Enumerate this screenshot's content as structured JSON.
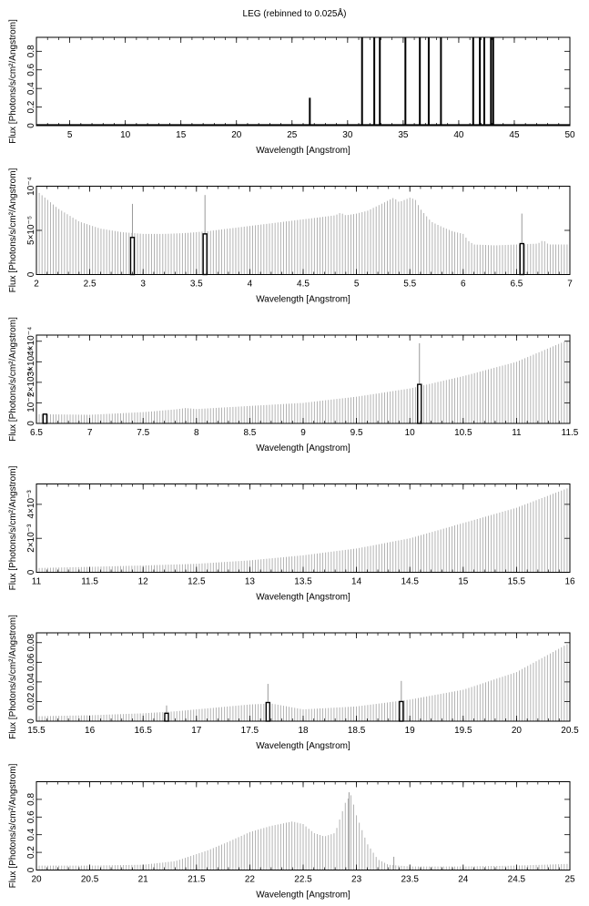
{
  "title": "LEG (rebinned to 0.025Å)",
  "chart_data": [
    {
      "type": "bar",
      "xlabel": "Wavelength [Angstrom]",
      "ylabel": "Flux [Photons/s/cm²/Angstrom]",
      "xlim": [
        2,
        50
      ],
      "ylim": [
        0,
        0.95
      ],
      "xticks": [
        "5",
        "10",
        "15",
        "20",
        "25",
        "30",
        "35",
        "40",
        "45",
        "50"
      ],
      "yticks": [
        "0",
        "0.2",
        "0.4",
        "0.6",
        "0.8"
      ],
      "series": [
        {
          "style": "baseline",
          "x": [
            2,
            50
          ],
          "values": [
            0.008,
            0.008
          ]
        },
        {
          "style": "spike",
          "x": [
            26.6,
            31.3,
            32.4,
            32.9,
            35.2,
            36.5,
            37.3,
            38.4,
            41.3,
            41.9,
            42.3,
            42.9,
            43.1
          ],
          "values": [
            0.3,
            0.95,
            0.95,
            0.95,
            0.95,
            0.95,
            0.95,
            0.95,
            0.95,
            0.95,
            0.95,
            0.95,
            0.95
          ]
        }
      ]
    },
    {
      "type": "bar",
      "xlabel": "Wavelength [Angstrom]",
      "ylabel": "Flux [Photons/s/cm²/Angstrom]",
      "xlim": [
        2,
        7
      ],
      "ylim": [
        0,
        0.0001
      ],
      "xticks": [
        "2",
        "2.5",
        "3",
        "3.5",
        "4",
        "4.5",
        "5",
        "5.5",
        "6",
        "6.5",
        "7"
      ],
      "yticks": [
        "0",
        "5×10⁻⁵",
        "10⁻⁴"
      ],
      "yticks_values": [
        0,
        5e-05,
        0.0001
      ],
      "series": [
        {
          "style": "envelope",
          "x": [
            2.0,
            2.1,
            2.2,
            2.4,
            2.6,
            2.8,
            3.0,
            3.2,
            3.4,
            3.6,
            3.8,
            4.0,
            4.2,
            4.4,
            4.6,
            4.8,
            4.85,
            4.9,
            5.0,
            5.1,
            5.2,
            5.3,
            5.35,
            5.4,
            5.5,
            5.55,
            5.6,
            5.7,
            5.8,
            5.9,
            6.0,
            6.05,
            6.1,
            6.3,
            6.5,
            6.7,
            6.75,
            6.8,
            7.0
          ],
          "values": [
            9.5e-05,
            8.5e-05,
            7.5e-05,
            6e-05,
            5.2e-05,
            4.8e-05,
            4.6e-05,
            4.6e-05,
            4.7e-05,
            4.9e-05,
            5.2e-05,
            5.5e-05,
            5.8e-05,
            6.1e-05,
            6.4e-05,
            6.7e-05,
            7e-05,
            6.7e-05,
            6.9e-05,
            7.2e-05,
            7.8e-05,
            8.4e-05,
            8.7e-05,
            8.2e-05,
            8.7e-05,
            8.5e-05,
            7.4e-05,
            6e-05,
            5.4e-05,
            4.9e-05,
            4.6e-05,
            3.8e-05,
            3.4e-05,
            3.3e-05,
            3.4e-05,
            3.5e-05,
            3.9e-05,
            3.4e-05,
            3.4e-05
          ]
        },
        {
          "style": "spike",
          "x": [
            2.9,
            3.58,
            6.55
          ],
          "values": [
            8e-05,
            9e-05,
            6.9e-05
          ]
        },
        {
          "style": "box",
          "x": [
            2.9,
            3.58,
            6.55
          ],
          "values": [
            4.2e-05,
            4.6e-05,
            3.5e-05
          ]
        }
      ]
    },
    {
      "type": "bar",
      "xlabel": "Wavelength [Angstrom]",
      "ylabel": "Flux [Photons/s/cm²/Angstrom]",
      "xlim": [
        6.5,
        11.5
      ],
      "ylim": [
        0,
        0.00043
      ],
      "xticks": [
        "6.5",
        "7",
        "7.5",
        "8",
        "8.5",
        "9",
        "9.5",
        "10",
        "10.5",
        "11",
        "11.5"
      ],
      "yticks": [
        "0",
        "10⁻⁴",
        "2×10⁻⁴",
        "3×10⁻⁴",
        "4×10⁻⁴"
      ],
      "yticks_values": [
        0,
        0.0001,
        0.0002,
        0.0003,
        0.0004
      ],
      "series": [
        {
          "style": "envelope",
          "x": [
            6.5,
            7.0,
            7.5,
            7.8,
            7.9,
            8.0,
            8.5,
            9.0,
            9.5,
            10.0,
            10.5,
            11.0,
            11.5
          ],
          "values": [
            4.5e-05,
            4.2e-05,
            5.5e-05,
            6.8e-05,
            7.5e-05,
            7e-05,
            8.5e-05,
            0.0001,
            0.00013,
            0.00017,
            0.00023,
            0.0003,
            0.00041
          ]
        },
        {
          "style": "spike",
          "x": [
            10.09
          ],
          "values": [
            0.00039
          ]
        },
        {
          "style": "box",
          "x": [
            6.58,
            10.09
          ],
          "values": [
            4.5e-05,
            0.00019
          ]
        }
      ]
    },
    {
      "type": "bar",
      "xlabel": "Wavelength [Angstrom]",
      "ylabel": "Flux [Photons/s/cm²/Angstrom]",
      "xlim": [
        11,
        16
      ],
      "ylim": [
        0,
        0.0052
      ],
      "xticks": [
        "11",
        "11.5",
        "12",
        "12.5",
        "13",
        "13.5",
        "14",
        "14.5",
        "15",
        "15.5",
        "16"
      ],
      "yticks": [
        "0",
        "2×10⁻³",
        "4×10⁻³"
      ],
      "yticks_values": [
        0,
        0.002,
        0.004
      ],
      "series": [
        {
          "style": "envelope",
          "x": [
            11.0,
            11.5,
            12.0,
            12.5,
            13.0,
            13.5,
            14.0,
            14.5,
            15.0,
            15.5,
            16.0
          ],
          "values": [
            0.00025,
            0.00032,
            0.0004,
            0.0005,
            0.0007,
            0.001,
            0.0014,
            0.002,
            0.0029,
            0.0038,
            0.005
          ]
        }
      ]
    },
    {
      "type": "bar",
      "xlabel": "Wavelength [Angstrom]",
      "ylabel": "Flux [Photons/s/cm²/Angstrom]",
      "xlim": [
        15.5,
        20.5
      ],
      "ylim": [
        0,
        0.09
      ],
      "xticks": [
        "15.5",
        "16",
        "16.5",
        "17",
        "17.5",
        "18",
        "18.5",
        "19",
        "19.5",
        "20",
        "20.5"
      ],
      "yticks": [
        "0",
        "0.02",
        "0.04",
        "0.06",
        "0.08"
      ],
      "series": [
        {
          "style": "envelope",
          "x": [
            15.5,
            16.0,
            16.5,
            16.8,
            17.0,
            17.5,
            17.7,
            18.0,
            18.5,
            19.0,
            19.5,
            20.0,
            20.5
          ],
          "values": [
            0.005,
            0.006,
            0.008,
            0.01,
            0.012,
            0.017,
            0.018,
            0.012,
            0.015,
            0.022,
            0.032,
            0.05,
            0.08
          ]
        },
        {
          "style": "spike",
          "x": [
            16.72,
            17.67,
            18.92
          ],
          "values": [
            0.016,
            0.038,
            0.041
          ]
        },
        {
          "style": "box",
          "x": [
            16.72,
            17.67,
            18.92
          ],
          "values": [
            0.008,
            0.019,
            0.02
          ]
        }
      ]
    },
    {
      "type": "bar",
      "xlabel": "Wavelength [Angstrom]",
      "ylabel": "Flux [Photons/s/cm²/Angstrom]",
      "xlim": [
        20,
        25
      ],
      "ylim": [
        0,
        1.0
      ],
      "xticks": [
        "20",
        "20.5",
        "21",
        "21.5",
        "22",
        "22.5",
        "23",
        "23.5",
        "24",
        "24.5",
        "25"
      ],
      "yticks": [
        "0",
        "0.2",
        "0.4",
        "0.6",
        "0.8"
      ],
      "series": [
        {
          "style": "envelope",
          "x": [
            20.0,
            20.5,
            21.0,
            21.3,
            21.6,
            21.8,
            22.0,
            22.2,
            22.4,
            22.5,
            22.6,
            22.7,
            22.8,
            22.85,
            22.9,
            22.95,
            23.0,
            23.1,
            23.2,
            23.3,
            23.5,
            24.0,
            24.5,
            25.0
          ],
          "values": [
            0.05,
            0.05,
            0.06,
            0.1,
            0.22,
            0.32,
            0.43,
            0.5,
            0.55,
            0.52,
            0.42,
            0.38,
            0.42,
            0.6,
            0.78,
            0.85,
            0.62,
            0.3,
            0.12,
            0.06,
            0.04,
            0.04,
            0.05,
            0.07
          ]
        },
        {
          "style": "spike",
          "x": [
            22.93,
            23.35
          ],
          "values": [
            0.88,
            0.15
          ]
        }
      ]
    }
  ]
}
